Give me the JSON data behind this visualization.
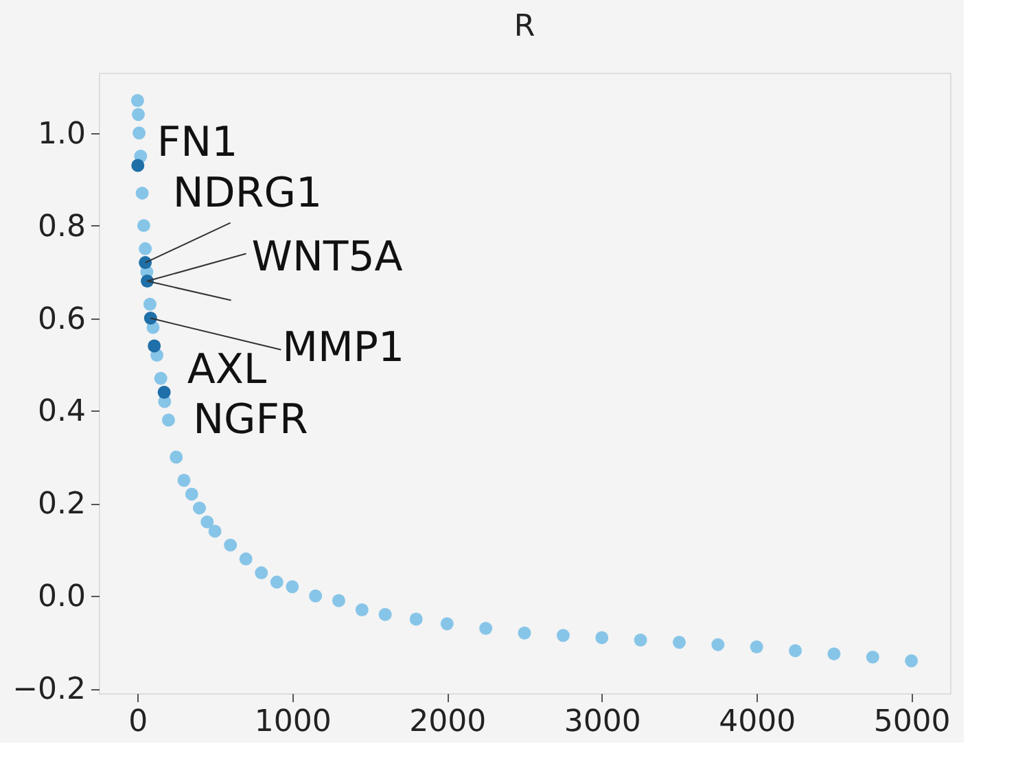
{
  "chart_data": {
    "type": "scatter",
    "title": "R",
    "marker": "circle",
    "grid": false,
    "xlim": [
      -250,
      5250
    ],
    "ylim": [
      -0.21,
      1.13
    ],
    "xticks": [
      0,
      1000,
      2000,
      3000,
      4000,
      5000
    ],
    "yticks": [
      {
        "value": -0.2,
        "label": "−0.2"
      },
      {
        "value": 0.0,
        "label": "0.0"
      },
      {
        "value": 0.2,
        "label": "0.2"
      },
      {
        "value": 0.4,
        "label": "0.4"
      },
      {
        "value": 0.6,
        "label": "0.6"
      },
      {
        "value": 0.8,
        "label": "0.8"
      },
      {
        "value": 1.0,
        "label": "1.0"
      }
    ],
    "series": [
      {
        "color": "#87c5e8",
        "x": [
          0,
          5,
          10,
          20,
          30,
          40,
          50,
          60,
          80,
          100,
          125,
          150,
          175,
          200,
          250,
          300,
          350,
          400,
          450,
          500,
          600,
          700,
          800,
          900,
          1000,
          1150,
          1300,
          1450,
          1600,
          1800,
          2000,
          2250,
          2500,
          2750,
          3000,
          3250,
          3500,
          3750,
          4000,
          4250,
          4500,
          4750,
          5000
        ],
        "values": [
          1.07,
          1.04,
          1.0,
          0.95,
          0.87,
          0.8,
          0.75,
          0.7,
          0.63,
          0.58,
          0.52,
          0.47,
          0.42,
          0.38,
          0.3,
          0.25,
          0.22,
          0.19,
          0.16,
          0.14,
          0.11,
          0.08,
          0.05,
          0.03,
          0.02,
          0.0,
          -0.01,
          -0.03,
          -0.04,
          -0.05,
          -0.06,
          -0.07,
          -0.08,
          -0.085,
          -0.09,
          -0.095,
          -0.1,
          -0.105,
          -0.11,
          -0.118,
          -0.125,
          -0.132,
          -0.14
        ]
      },
      {
        "color": "#1f6fa8",
        "x": [
          2,
          50,
          63,
          84,
          108,
          172
        ],
        "values": [
          0.93,
          0.72,
          0.68,
          0.6,
          0.54,
          0.44
        ]
      }
    ],
    "annotations": [
      {
        "text": "FN1",
        "x": 2,
        "y": 0.93
      },
      {
        "text": "NDRG1",
        "x": 50,
        "y": 0.72
      },
      {
        "text": "WNT5A",
        "x": 63,
        "y": 0.68
      },
      {
        "text": "MMP1",
        "x": 84,
        "y": 0.6
      },
      {
        "text": "AXL",
        "x": 108,
        "y": 0.54
      },
      {
        "text": "NGFR",
        "x": 172,
        "y": 0.44
      }
    ]
  }
}
